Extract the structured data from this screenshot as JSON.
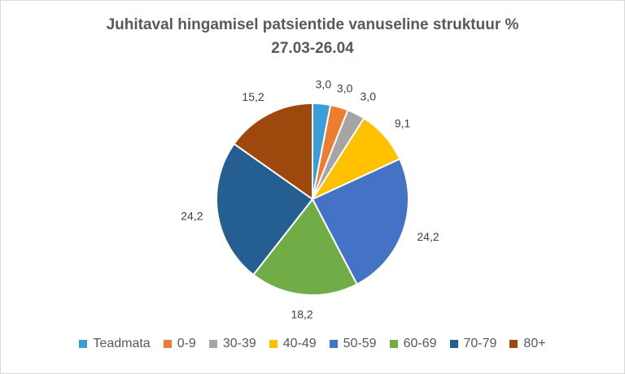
{
  "chart_data": {
    "type": "pie",
    "title": "Juhitaval hingamisel patsientide vanuseline struktuur %",
    "subtitle": "27.03-26.04",
    "legend_position": "bottom",
    "slices": [
      {
        "label": "Teadmata",
        "value": 3.0,
        "display": "3,0",
        "color": "#3a9fd8"
      },
      {
        "label": "0-9",
        "value": 3.0,
        "display": "3,0",
        "color": "#ed7d31"
      },
      {
        "label": "30-39",
        "value": 3.0,
        "display": "3,0",
        "color": "#a5a5a5"
      },
      {
        "label": "40-49",
        "value": 9.1,
        "display": "9,1",
        "color": "#ffc000"
      },
      {
        "label": "50-59",
        "value": 24.2,
        "display": "24,2",
        "color": "#4472c4"
      },
      {
        "label": "60-69",
        "value": 18.2,
        "display": "18,2",
        "color": "#70ad47"
      },
      {
        "label": "70-79",
        "value": 24.2,
        "display": "24,2",
        "color": "#255e91"
      },
      {
        "label": "80+",
        "value": 15.2,
        "display": "15,2",
        "color": "#9e480e"
      }
    ]
  }
}
